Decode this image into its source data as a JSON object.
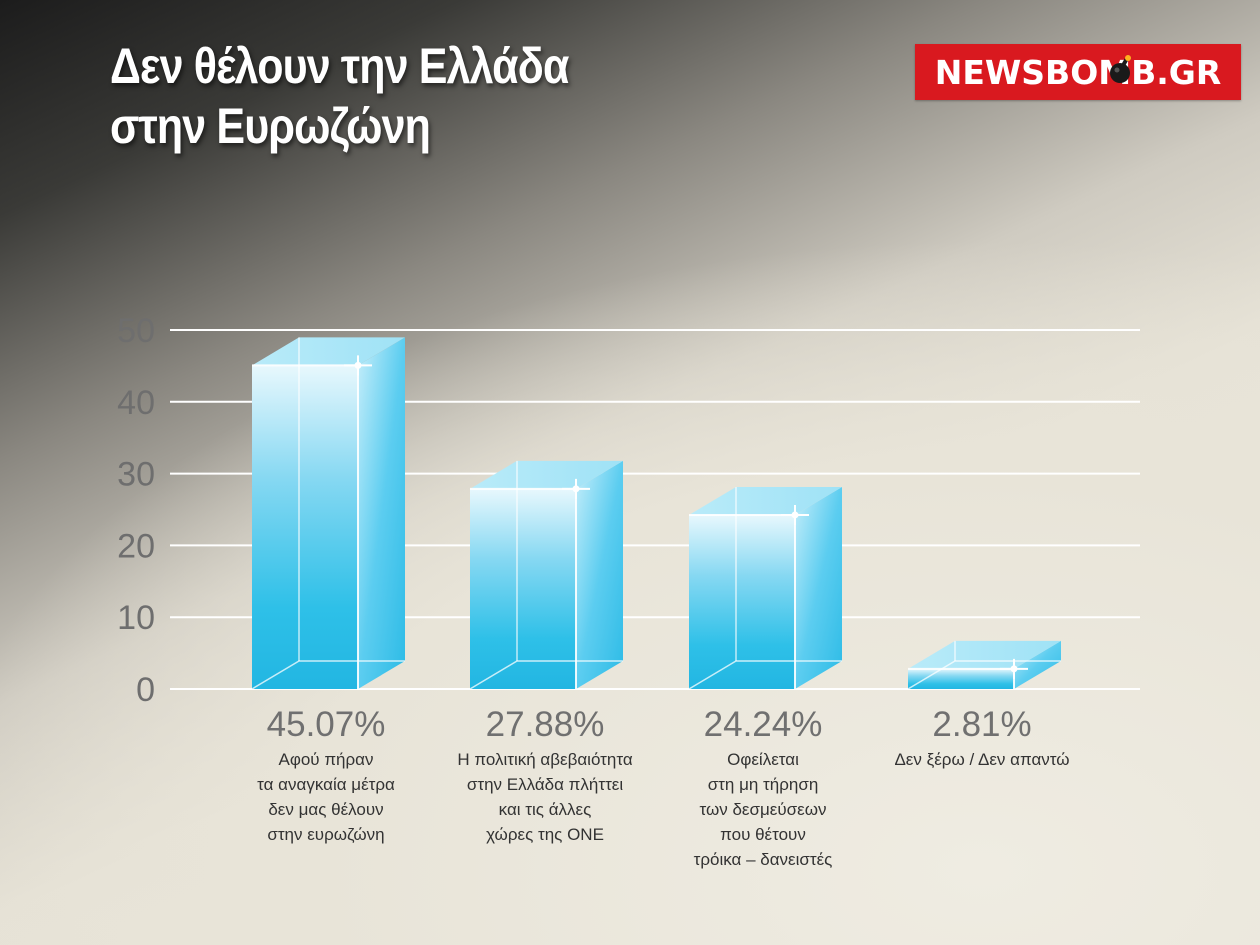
{
  "header": {
    "title_lines": [
      "Δεν θέλουν την Ελλάδα",
      "στην Ευρωζώνη"
    ],
    "logo_text": "NEWSBOMB.GR"
  },
  "colors": {
    "bar_front": "#29bde6",
    "bar_top": "#a9e6f7",
    "bar_side": "#4fcbee",
    "logo_bg": "#d9191f",
    "grid": "#ffffff"
  },
  "chart_data": {
    "type": "bar",
    "title": "Δεν θέλουν την Ελλάδα στην Ευρωζώνη",
    "xlabel": "",
    "ylabel": "",
    "ylim": [
      0,
      50
    ],
    "yticks": [
      0,
      10,
      20,
      30,
      40,
      50
    ],
    "grid": true,
    "categories": [
      [
        "Αφού πήραν",
        "τα αναγκαία μέτρα",
        "δεν μας θέλουν",
        "στην ευρωζώνη"
      ],
      [
        "Η πολιτική αβεβαιότητα",
        "στην Ελλάδα πλήττει",
        "και τις άλλες",
        "χώρες της ΟΝΕ"
      ],
      [
        "Οφείλεται",
        "στη μη τήρηση",
        "των δεσμεύσεων",
        "που θέτουν",
        "τρόικα – δανειστές"
      ],
      [
        "Δεν ξέρω / Δεν απαντώ"
      ]
    ],
    "values": [
      45.07,
      27.88,
      24.24,
      2.81
    ],
    "value_labels": [
      "45.07%",
      "27.88%",
      "24.24%",
      "2.81%"
    ]
  }
}
